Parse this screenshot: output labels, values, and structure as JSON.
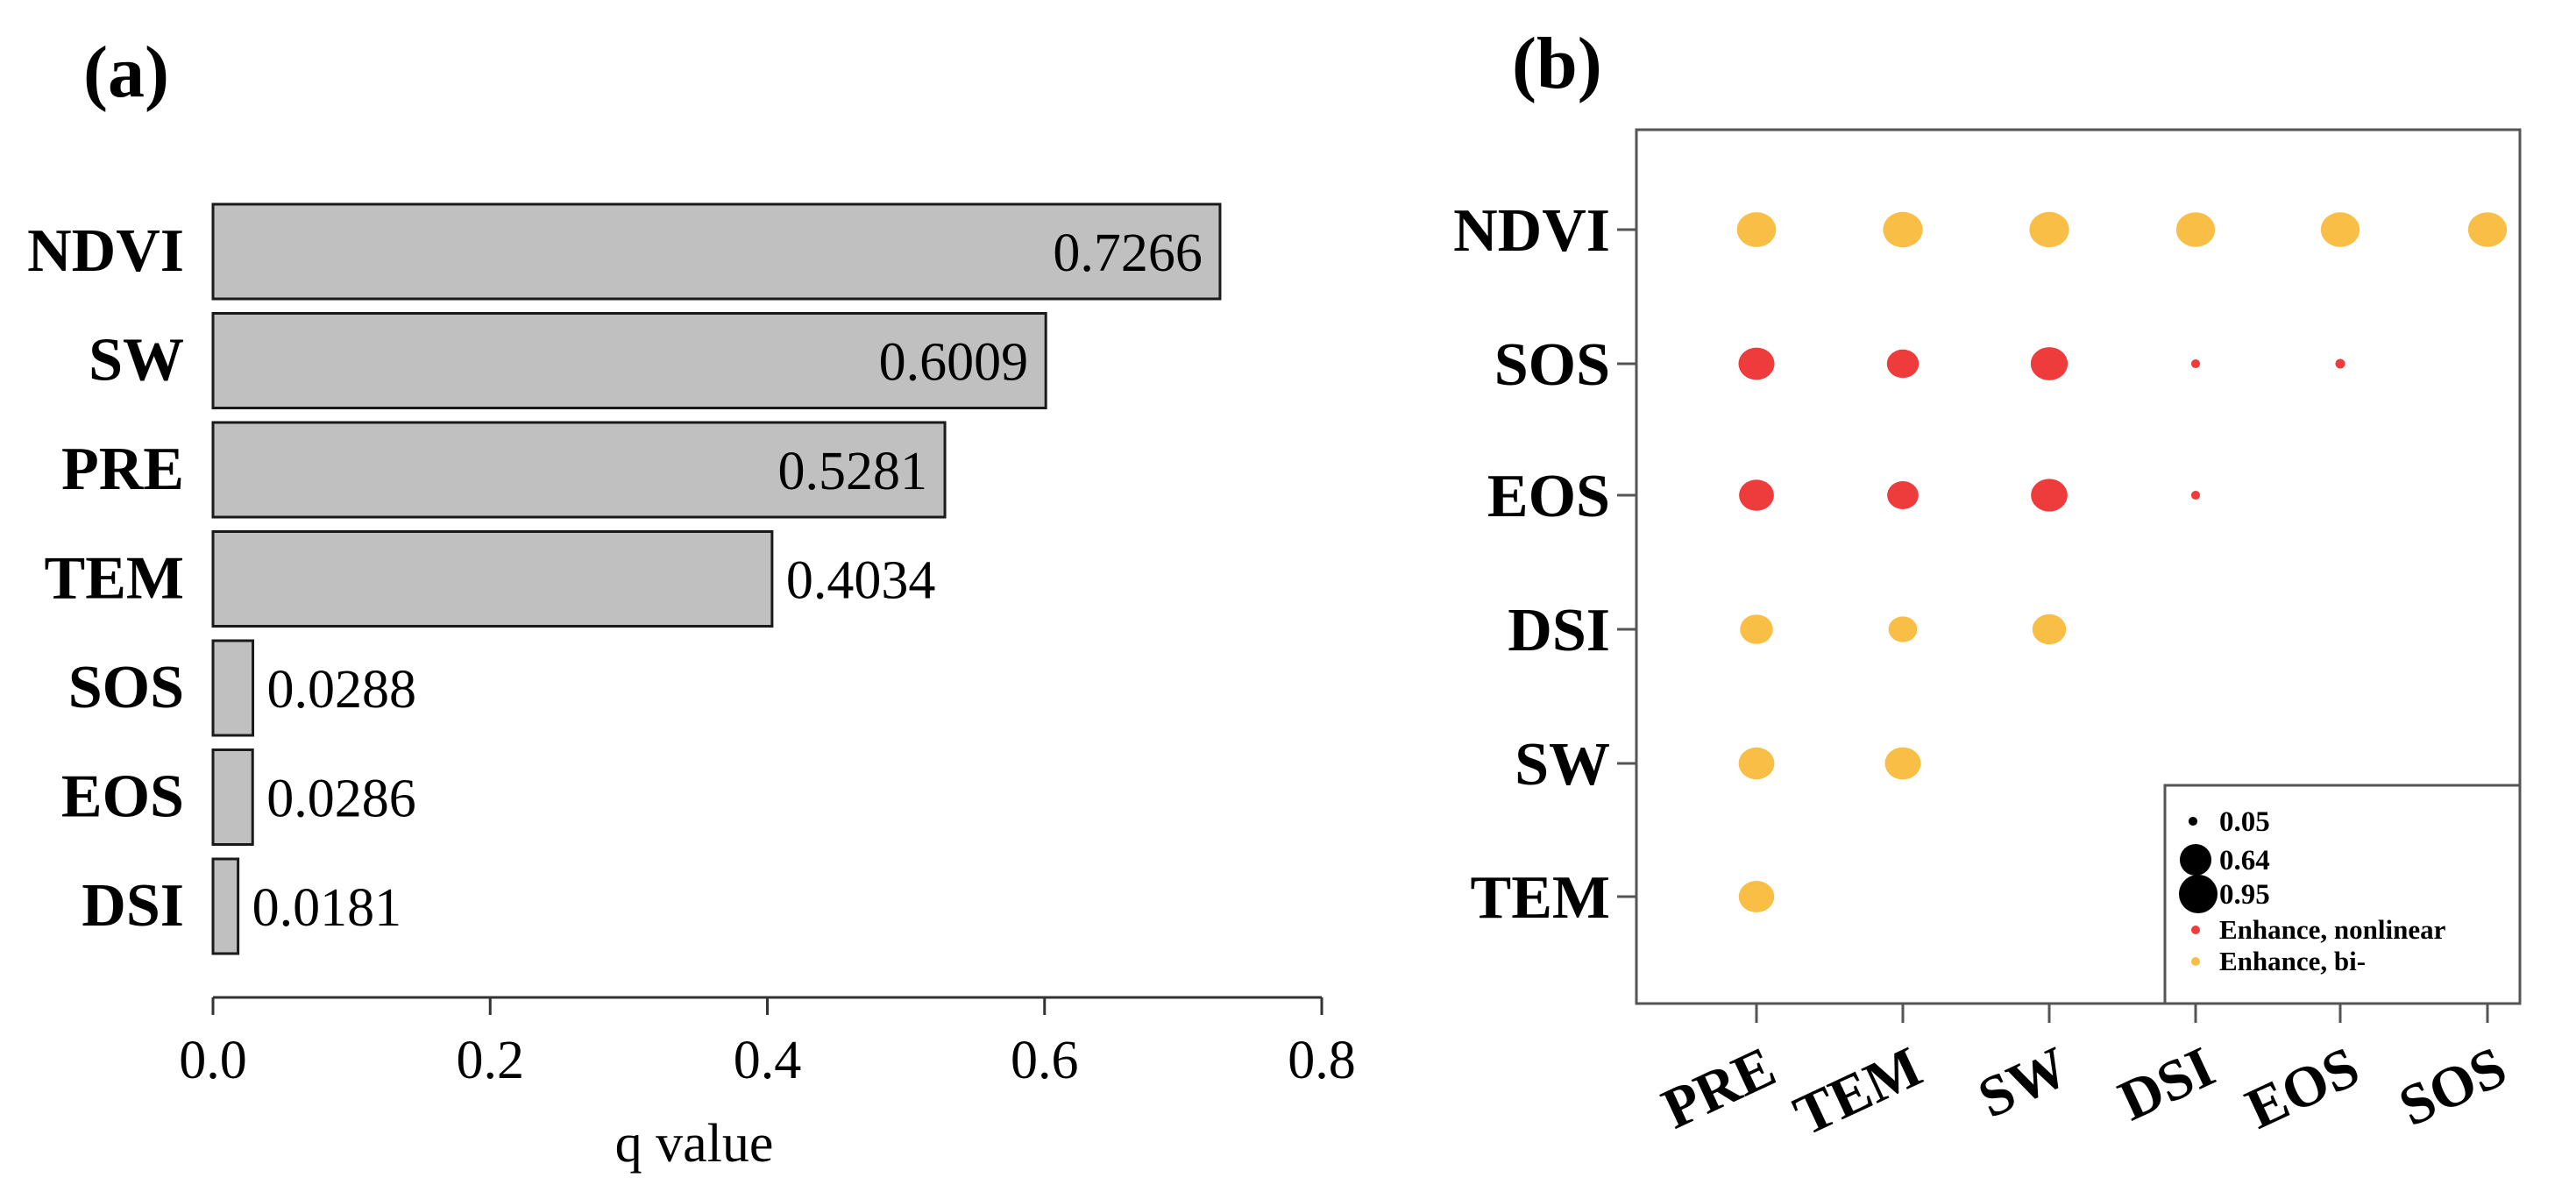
{
  "panels": {
    "a": {
      "label": "(a)"
    },
    "b": {
      "label": "(b)"
    }
  },
  "colors": {
    "bar_fill": "#c0c0c0",
    "bar_stroke": "#1a1a1a",
    "enhance_nonlinear": "#ee3b3b",
    "enhance_bi": "#f9be45",
    "axis": "#333333",
    "frame": "#555555"
  },
  "chart_data": [
    {
      "type": "bar",
      "orientation": "horizontal",
      "categories": [
        "NDVI",
        "SW",
        "PRE",
        "TEM",
        "SOS",
        "EOS",
        "DSI"
      ],
      "values": [
        0.7266,
        0.6009,
        0.5281,
        0.4034,
        0.0288,
        0.0286,
        0.0181
      ],
      "value_labels": [
        "0.7266",
        "0.6009",
        "0.5281",
        "0.4034",
        "0.0288",
        "0.0286",
        "0.0181"
      ],
      "xlabel": "q value",
      "ylabel": "",
      "xlim": [
        0,
        0.8
      ],
      "xticks": [
        0.0,
        0.2,
        0.4,
        0.6,
        0.8
      ],
      "xtick_labels": [
        "0.0",
        "0.2",
        "0.4",
        "0.6",
        "0.8"
      ],
      "grid": false
    },
    {
      "type": "scatter",
      "subtype": "bubble-matrix",
      "x_categories": [
        "PRE",
        "TEM",
        "SW",
        "DSI",
        "EOS",
        "SOS"
      ],
      "y_categories": [
        "NDVI",
        "SOS",
        "EOS",
        "DSI",
        "SW",
        "TEM"
      ],
      "points": [
        {
          "x": "PRE",
          "y": "NDVI",
          "value": 0.78,
          "type": "bi"
        },
        {
          "x": "TEM",
          "y": "NDVI",
          "value": 0.8,
          "type": "bi"
        },
        {
          "x": "SW",
          "y": "NDVI",
          "value": 0.8,
          "type": "bi"
        },
        {
          "x": "DSI",
          "y": "NDVI",
          "value": 0.77,
          "type": "bi"
        },
        {
          "x": "EOS",
          "y": "NDVI",
          "value": 0.77,
          "type": "bi"
        },
        {
          "x": "SOS",
          "y": "NDVI",
          "value": 0.77,
          "type": "bi"
        },
        {
          "x": "PRE",
          "y": "SOS",
          "value": 0.66,
          "type": "nonlinear"
        },
        {
          "x": "TEM",
          "y": "SOS",
          "value": 0.52,
          "type": "nonlinear"
        },
        {
          "x": "SW",
          "y": "SOS",
          "value": 0.7,
          "type": "nonlinear"
        },
        {
          "x": "DSI",
          "y": "SOS",
          "value": 0.05,
          "type": "nonlinear"
        },
        {
          "x": "EOS",
          "y": "SOS",
          "value": 0.06,
          "type": "nonlinear"
        },
        {
          "x": "PRE",
          "y": "EOS",
          "value": 0.62,
          "type": "nonlinear"
        },
        {
          "x": "TEM",
          "y": "EOS",
          "value": 0.5,
          "type": "nonlinear"
        },
        {
          "x": "SW",
          "y": "EOS",
          "value": 0.68,
          "type": "nonlinear"
        },
        {
          "x": "DSI",
          "y": "EOS",
          "value": 0.05,
          "type": "nonlinear"
        },
        {
          "x": "PRE",
          "y": "DSI",
          "value": 0.55,
          "type": "bi"
        },
        {
          "x": "TEM",
          "y": "DSI",
          "value": 0.42,
          "type": "bi"
        },
        {
          "x": "SW",
          "y": "DSI",
          "value": 0.58,
          "type": "bi"
        },
        {
          "x": "PRE",
          "y": "SW",
          "value": 0.65,
          "type": "bi"
        },
        {
          "x": "TEM",
          "y": "SW",
          "value": 0.66,
          "type": "bi"
        },
        {
          "x": "PRE",
          "y": "TEM",
          "value": 0.64,
          "type": "bi"
        }
      ],
      "size_legend": [
        {
          "value": 0.05,
          "label": "0.05"
        },
        {
          "value": 0.64,
          "label": "0.64"
        },
        {
          "value": 0.95,
          "label": "0.95"
        }
      ],
      "color_legend": [
        {
          "type": "nonlinear",
          "label": "Enhance, nonlinear"
        },
        {
          "type": "bi",
          "label": "Enhance, bi-"
        }
      ],
      "legend_position": "bottom-right",
      "grid": false
    }
  ]
}
